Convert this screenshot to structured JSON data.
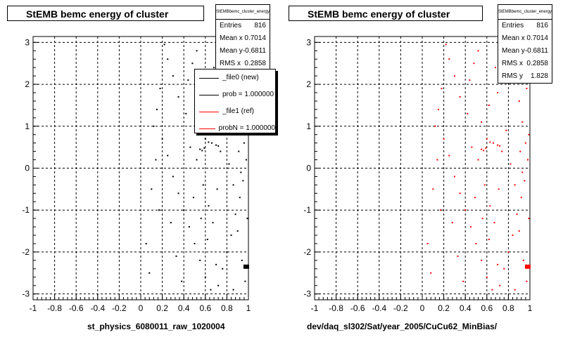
{
  "chart_data": [
    {
      "type": "scatter",
      "title": "StEMB bemc energy of cluster",
      "xlabel": "st_physics_6080011_raw_1020004",
      "ylabel": "",
      "xlim": [
        -1,
        1
      ],
      "ylim": [
        -3.14,
        3.14
      ],
      "xticks": [
        "-1",
        "-0.8",
        "-0.6",
        "-0.4",
        "-0.2",
        "0",
        "0.2",
        "0.4",
        "0.6",
        "0.8",
        "1"
      ],
      "yticks": [
        "-3",
        "-2",
        "-1",
        "0",
        "1",
        "2",
        "3"
      ],
      "grid": true,
      "color": "#000000",
      "stats": {
        "name": "StEMBbemc_cluster_energy",
        "rows": [
          {
            "label": "Entries",
            "value": "816"
          },
          {
            "label": "Mean x",
            "value": "0.7014"
          },
          {
            "label": "Mean y",
            "value": "-0.6811"
          },
          {
            "label": "RMS x",
            "value": "0.2858"
          }
        ]
      },
      "legend": [
        {
          "label": "_file0 (new)",
          "color": "#000000"
        },
        {
          "label": "prob = 1.000000",
          "color": "#000000"
        },
        {
          "label": "_file1 (ref)",
          "color": "#ff0000"
        },
        {
          "label": "probN = 1.000000",
          "color": "#ff0000"
        }
      ],
      "points": [
        [
          0.22,
          2.95
        ],
        [
          0.25,
          2.6
        ],
        [
          0.3,
          2.2
        ],
        [
          0.18,
          1.9
        ],
        [
          0.35,
          1.7
        ],
        [
          0.15,
          1.4
        ],
        [
          0.42,
          1.3
        ],
        [
          0.55,
          1.1
        ],
        [
          0.62,
          1.5
        ],
        [
          0.7,
          1.8
        ],
        [
          0.68,
          2.4
        ],
        [
          0.75,
          2.9
        ],
        [
          0.8,
          2.5
        ],
        [
          0.85,
          2.1
        ],
        [
          0.9,
          1.6
        ],
        [
          0.93,
          1.1
        ],
        [
          0.96,
          0.6
        ],
        [
          0.98,
          0.2
        ],
        [
          0.95,
          -0.3
        ],
        [
          0.92,
          -0.7
        ],
        [
          0.88,
          -1.1
        ],
        [
          0.84,
          -1.6
        ],
        [
          0.8,
          -2.0
        ],
        [
          0.76,
          -2.4
        ],
        [
          0.72,
          -2.8
        ],
        [
          0.65,
          -2.9
        ],
        [
          0.6,
          -2.6
        ],
        [
          0.55,
          -2.2
        ],
        [
          0.5,
          -1.8
        ],
        [
          0.45,
          -1.4
        ],
        [
          0.4,
          -1.0
        ],
        [
          0.35,
          -0.6
        ],
        [
          0.3,
          -0.2
        ],
        [
          0.25,
          0.3
        ],
        [
          0.2,
          0.7
        ],
        [
          0.12,
          1.0
        ],
        [
          0.28,
          -1.3
        ],
        [
          0.33,
          -2.1
        ],
        [
          0.38,
          -2.7
        ],
        [
          0.46,
          0.5
        ],
        [
          0.52,
          0.2
        ],
        [
          0.58,
          -0.4
        ],
        [
          0.63,
          -0.9
        ],
        [
          0.67,
          -1.3
        ],
        [
          0.71,
          -0.5
        ],
        [
          0.74,
          0.4
        ],
        [
          0.78,
          0.9
        ],
        [
          0.82,
          0.1
        ],
        [
          0.86,
          -0.4
        ],
        [
          0.9,
          -1.5
        ],
        [
          0.94,
          -2.2
        ],
        [
          0.97,
          -2.7
        ],
        [
          0.99,
          -1.2
        ],
        [
          0.99,
          0.8
        ],
        [
          0.97,
          1.9
        ],
        [
          0.99,
          2.6
        ],
        [
          0.6,
          0.7
        ],
        [
          0.63,
          0.62
        ],
        [
          0.66,
          0.6
        ],
        [
          0.7,
          0.55
        ],
        [
          0.72,
          0.53
        ],
        [
          0.55,
          0.45
        ],
        [
          0.57,
          0.42
        ],
        [
          0.59,
          0.48
        ],
        [
          0.44,
          2.1
        ],
        [
          0.48,
          2.5
        ],
        [
          0.52,
          2.8
        ],
        [
          0.1,
          -0.5
        ],
        [
          0.05,
          -1.8
        ],
        [
          0.08,
          -2.5
        ],
        [
          0.14,
          0.2
        ],
        [
          0.17,
          -1.0
        ],
        [
          0.88,
          2.8
        ],
        [
          0.91,
          0.4
        ],
        [
          0.93,
          -0.1
        ],
        [
          0.86,
          -2.9
        ],
        [
          0.7,
          -2.3
        ],
        [
          0.62,
          -1.7
        ],
        [
          0.56,
          -1.2
        ],
        [
          0.49,
          -0.7
        ]
      ],
      "block": [
        0.98,
        -2.35
      ]
    },
    {
      "type": "scatter",
      "title": "StEMB bemc energy of cluster",
      "xlabel": "dev/daq_sl302/Sat/year_2005/CuCu62_MinBias/",
      "ylabel": "",
      "xlim": [
        -1,
        1
      ],
      "ylim": [
        -3.14,
        3.14
      ],
      "xticks": [
        "-1",
        "-0.8",
        "-0.6",
        "-0.4",
        "-0.2",
        "0",
        "0.2",
        "0.4",
        "0.6",
        "0.8",
        "1"
      ],
      "yticks": [
        "-3",
        "-2",
        "-1",
        "0",
        "1",
        "2",
        "3"
      ],
      "grid": true,
      "color": "#ff0000",
      "stats": {
        "name": "StEMBbemc_cluster_energy",
        "rows": [
          {
            "label": "Entries",
            "value": "816"
          },
          {
            "label": "Mean x",
            "value": "0.7014"
          },
          {
            "label": "Mean y",
            "value": "-0.6811"
          },
          {
            "label": "RMS x",
            "value": "0.2858"
          },
          {
            "label": "RMS y",
            "value": "1.828"
          }
        ]
      },
      "points": [
        [
          0.22,
          2.95
        ],
        [
          0.25,
          2.6
        ],
        [
          0.3,
          2.2
        ],
        [
          0.18,
          1.9
        ],
        [
          0.35,
          1.7
        ],
        [
          0.15,
          1.4
        ],
        [
          0.42,
          1.3
        ],
        [
          0.55,
          1.1
        ],
        [
          0.62,
          1.5
        ],
        [
          0.7,
          1.8
        ],
        [
          0.68,
          2.4
        ],
        [
          0.75,
          2.9
        ],
        [
          0.8,
          2.5
        ],
        [
          0.85,
          2.1
        ],
        [
          0.9,
          1.6
        ],
        [
          0.93,
          1.1
        ],
        [
          0.96,
          0.6
        ],
        [
          0.98,
          0.2
        ],
        [
          0.95,
          -0.3
        ],
        [
          0.92,
          -0.7
        ],
        [
          0.88,
          -1.1
        ],
        [
          0.84,
          -1.6
        ],
        [
          0.8,
          -2.0
        ],
        [
          0.76,
          -2.4
        ],
        [
          0.72,
          -2.8
        ],
        [
          0.65,
          -2.9
        ],
        [
          0.6,
          -2.6
        ],
        [
          0.55,
          -2.2
        ],
        [
          0.5,
          -1.8
        ],
        [
          0.45,
          -1.4
        ],
        [
          0.4,
          -1.0
        ],
        [
          0.35,
          -0.6
        ],
        [
          0.3,
          -0.2
        ],
        [
          0.25,
          0.3
        ],
        [
          0.2,
          0.7
        ],
        [
          0.12,
          1.0
        ],
        [
          0.28,
          -1.3
        ],
        [
          0.33,
          -2.1
        ],
        [
          0.38,
          -2.7
        ],
        [
          0.46,
          0.5
        ],
        [
          0.52,
          0.2
        ],
        [
          0.58,
          -0.4
        ],
        [
          0.63,
          -0.9
        ],
        [
          0.67,
          -1.3
        ],
        [
          0.71,
          -0.5
        ],
        [
          0.74,
          0.4
        ],
        [
          0.78,
          0.9
        ],
        [
          0.82,
          0.1
        ],
        [
          0.86,
          -0.4
        ],
        [
          0.9,
          -1.5
        ],
        [
          0.94,
          -2.2
        ],
        [
          0.97,
          -2.7
        ],
        [
          0.99,
          -1.2
        ],
        [
          0.99,
          0.8
        ],
        [
          0.97,
          1.9
        ],
        [
          0.99,
          2.6
        ],
        [
          0.6,
          0.7
        ],
        [
          0.63,
          0.62
        ],
        [
          0.66,
          0.6
        ],
        [
          0.7,
          0.55
        ],
        [
          0.72,
          0.53
        ],
        [
          0.55,
          0.45
        ],
        [
          0.57,
          0.42
        ],
        [
          0.59,
          0.48
        ],
        [
          0.44,
          2.1
        ],
        [
          0.48,
          2.5
        ],
        [
          0.52,
          2.8
        ],
        [
          0.1,
          -0.5
        ],
        [
          0.05,
          -1.8
        ],
        [
          0.08,
          -2.5
        ],
        [
          0.14,
          0.2
        ],
        [
          0.17,
          -1.0
        ],
        [
          0.88,
          2.8
        ],
        [
          0.91,
          0.4
        ],
        [
          0.93,
          -0.1
        ],
        [
          0.86,
          -2.9
        ],
        [
          0.7,
          -2.3
        ],
        [
          0.62,
          -1.7
        ],
        [
          0.56,
          -1.2
        ],
        [
          0.49,
          -0.7
        ]
      ],
      "block": [
        0.98,
        -2.35
      ]
    }
  ]
}
